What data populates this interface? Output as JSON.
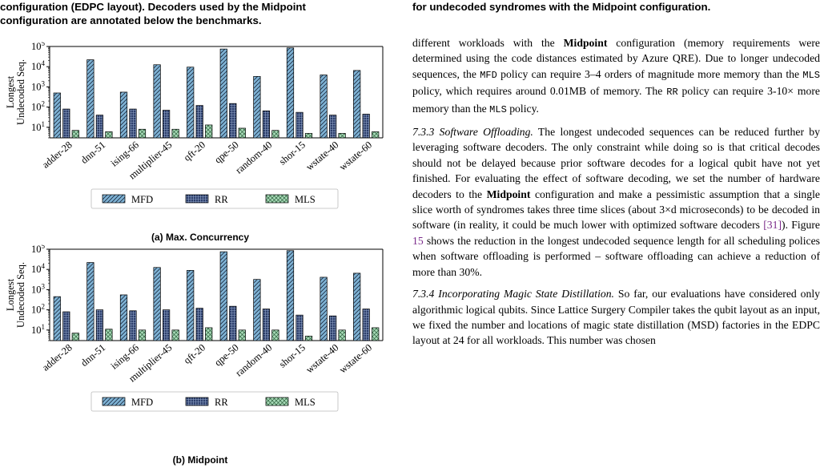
{
  "left_caption": {
    "line1": "configuration (EDPC layout). Decoders used by the Midpoint",
    "line2": "configuration are annotated below the benchmarks."
  },
  "right_caption": "for undecoded syndromes with the Midpoint configuration.",
  "chart_data": [
    {
      "type": "bar",
      "subcaption": "(a) Max. Concurrency",
      "ylabel_line1": "Longest",
      "ylabel_line2": "Undecoded Seq.",
      "yscale": "log",
      "ylim": [
        3,
        100000
      ],
      "yticks": [
        "10^1",
        "10^2",
        "10^3",
        "10^4",
        "10^5"
      ],
      "categories": [
        "adder-28",
        "dnn-51",
        "ising-66",
        "multiplier-45",
        "qft-20",
        "qpe-50",
        "random-40",
        "shor-15",
        "wstate-40",
        "wstate-60"
      ],
      "series": [
        {
          "name": "MFD",
          "color": "#7fb3d5",
          "values": [
            500,
            22000,
            550,
            12500,
            9500,
            75000,
            3300,
            85000,
            3900,
            6500
          ]
        },
        {
          "name": "RR",
          "color": "#2c3e6b",
          "values": [
            80,
            40,
            80,
            70,
            120,
            150,
            65,
            55,
            40,
            45
          ]
        },
        {
          "name": "MLS",
          "color": "#a8dbb8",
          "values": [
            7,
            6,
            8,
            8,
            13,
            9,
            7,
            5,
            5,
            6
          ]
        }
      ],
      "legend": "bottom-center",
      "grid": false
    },
    {
      "type": "bar",
      "subcaption": "(b) Midpoint",
      "ylabel_line1": "Longest",
      "ylabel_line2": "Undecoded Seq.",
      "yscale": "log",
      "ylim": [
        3,
        100000
      ],
      "yticks": [
        "10^1",
        "10^2",
        "10^3",
        "10^4",
        "10^5"
      ],
      "categories": [
        "adder-28",
        "dnn-51",
        "ising-66",
        "multiplier-45",
        "qft-20",
        "qpe-50",
        "random-40",
        "shor-15",
        "wstate-40",
        "wstate-60"
      ],
      "series": [
        {
          "name": "MFD",
          "color": "#7fb3d5",
          "values": [
            450,
            22000,
            550,
            12500,
            9000,
            75000,
            3200,
            85000,
            4100,
            6500
          ]
        },
        {
          "name": "RR",
          "color": "#2c3e6b",
          "values": [
            80,
            100,
            90,
            100,
            120,
            150,
            110,
            55,
            50,
            110
          ]
        },
        {
          "name": "MLS",
          "color": "#a8dbb8",
          "values": [
            7,
            11,
            10,
            10,
            13,
            10,
            10,
            5,
            10,
            13
          ]
        }
      ],
      "legend": "bottom-center",
      "grid": false
    }
  ],
  "body": {
    "p1": [
      {
        "t": "different workloads with the "
      },
      {
        "t": "Midpoint",
        "b": true
      },
      {
        "t": " configuration (memory requirements were determined using the code distances estimated by Azure QRE). Due to longer undecoded sequences, the "
      },
      {
        "t": "MFD",
        "m": true
      },
      {
        "t": " policy can require 3–4 orders of magnitude more memory than the "
      },
      {
        "t": "MLS",
        "m": true
      },
      {
        "t": " policy, which requires around 0.01MB of memory. The "
      },
      {
        "t": "RR",
        "m": true
      },
      {
        "t": " policy can require 3-10× more memory than the "
      },
      {
        "t": "MLS",
        "m": true
      },
      {
        "t": " policy."
      }
    ],
    "p2": [
      {
        "t": "7.3.3   Software Offloading.",
        "i": true
      },
      {
        "t": " The longest undecoded sequences can be reduced further by leveraging software decoders. The only constraint while doing so is that critical decodes should not be delayed because prior software decodes for a logical qubit have not yet finished. For evaluating the effect of software decoding, we set the number of hardware decoders to the "
      },
      {
        "t": "Midpoint",
        "b": true
      },
      {
        "t": " configuration and make a pessimistic assumption that a single slice worth of syndromes takes three time slices (about 3×d microseconds) to be decoded in software (in reality, it could be much lower with optimized software decoders "
      },
      {
        "t": "[31]",
        "c": true
      },
      {
        "t": "). Figure "
      },
      {
        "t": "15",
        "c": true
      },
      {
        "t": " shows the reduction in the longest undecoded sequence length for all scheduling polices when software offloading is performed – software offloading can achieve a reduction of more than 30%."
      }
    ],
    "p3": [
      {
        "t": "7.3.4   Incorporating Magic State Distillation.",
        "i": true
      },
      {
        "t": " So far, our evaluations have considered only algorithmic logical qubits. Since Lattice Surgery Compiler takes the qubit layout as an input, we fixed the number and locations of magic state distillation (MSD) factories in the EDPC layout at 24 for all workloads. This number was chosen"
      }
    ]
  }
}
